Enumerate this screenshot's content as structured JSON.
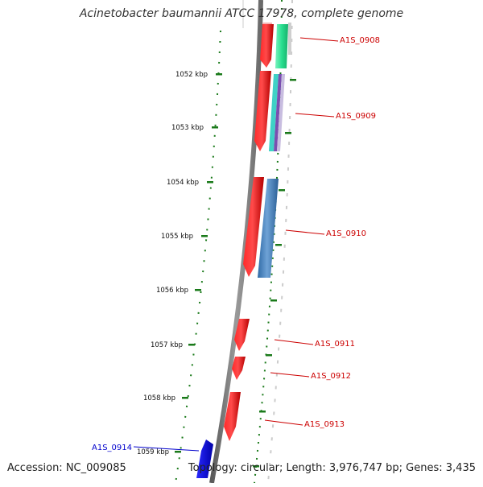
{
  "title": "Acinetobacter baumannii ATCC 17978, complete genome",
  "footer": {
    "accession": "Accession: NC_009085",
    "summary": "Topology: circular; Length: 3,976,747 bp; Genes: 3,435"
  },
  "colors": {
    "forward_gene": "#ff0000",
    "reverse_gene": "#0000ff",
    "forward_label": "#cc0000",
    "reverse_label": "#0000cc",
    "tick": "#1a7a1a",
    "backbone": "#888888",
    "green_feature": "#22d98a",
    "steel_feature": "#4b86bd"
  },
  "scale_ticks": [
    {
      "label": "1052 kbp"
    },
    {
      "label": "1053 kbp"
    },
    {
      "label": "1054 kbp"
    },
    {
      "label": "1055 kbp"
    },
    {
      "label": "1056 kbp"
    },
    {
      "label": "1057 kbp"
    },
    {
      "label": "1058 kbp"
    },
    {
      "label": "1059 kbp"
    }
  ],
  "genes": [
    {
      "name": "A1S_0908",
      "strand": "forward"
    },
    {
      "name": "A1S_0909",
      "strand": "forward"
    },
    {
      "name": "A1S_0910",
      "strand": "forward"
    },
    {
      "name": "A1S_0911",
      "strand": "forward"
    },
    {
      "name": "A1S_0912",
      "strand": "forward"
    },
    {
      "name": "A1S_0913",
      "strand": "forward"
    },
    {
      "name": "A1S_0914",
      "strand": "reverse"
    }
  ]
}
